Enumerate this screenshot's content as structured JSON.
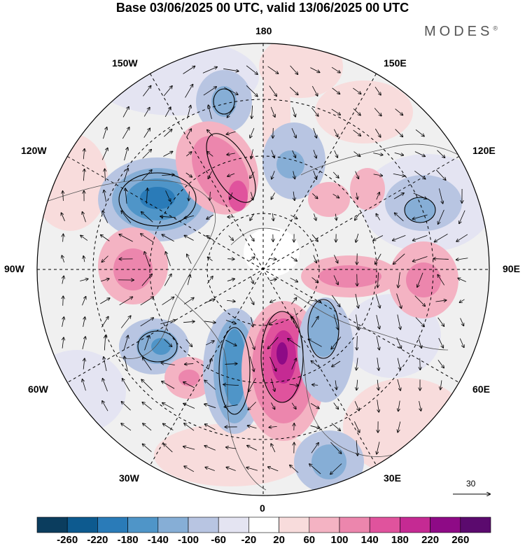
{
  "title": "Base 03/06/2025 00 UTC, valid 13/06/2025 00 UTC",
  "brand": "MODES",
  "brand_mark": "®",
  "longitude_labels": {
    "top": "180",
    "bottom": "0",
    "left": "90W",
    "right": "90E",
    "upper_left_1": "150W",
    "upper_left_2": "120W",
    "upper_right_1": "150E",
    "upper_right_2": "120E",
    "lower_left_1": "60W",
    "lower_left_2": "30W",
    "lower_right_1": "60E",
    "lower_right_2": "30E"
  },
  "wind_reference": {
    "value": "30"
  },
  "colorbar": {
    "labels": [
      "-260",
      "-220",
      "-180",
      "-140",
      "-100",
      "-60",
      "-20",
      "20",
      "60",
      "100",
      "140",
      "180",
      "220",
      "260"
    ],
    "colors": [
      "#0b3d5e",
      "#0d5a8f",
      "#2a7bb8",
      "#4f95c8",
      "#86aed6",
      "#b8c5e2",
      "#e4e4f2",
      "#ffffff",
      "#f8dcdc",
      "#f4b3c3",
      "#ec86ad",
      "#e0539d",
      "#c52a93",
      "#8e0a86",
      "#5b0a6e"
    ]
  },
  "map": {
    "projection": "north polar stereographic",
    "background_fill": "#f0f0f0",
    "anomaly_colors": {
      "strong_negative": "#2a7bb8",
      "moderate_negative": "#86aed6",
      "weak_negative": "#b8c5e2",
      "faint_negative": "#e4e4f2",
      "faint_positive": "#f8dcdc",
      "weak_positive": "#f4b3c3",
      "moderate_positive": "#ec86ad",
      "strong_positive": "#c52a93",
      "extreme_positive": "#8e0a86"
    }
  }
}
